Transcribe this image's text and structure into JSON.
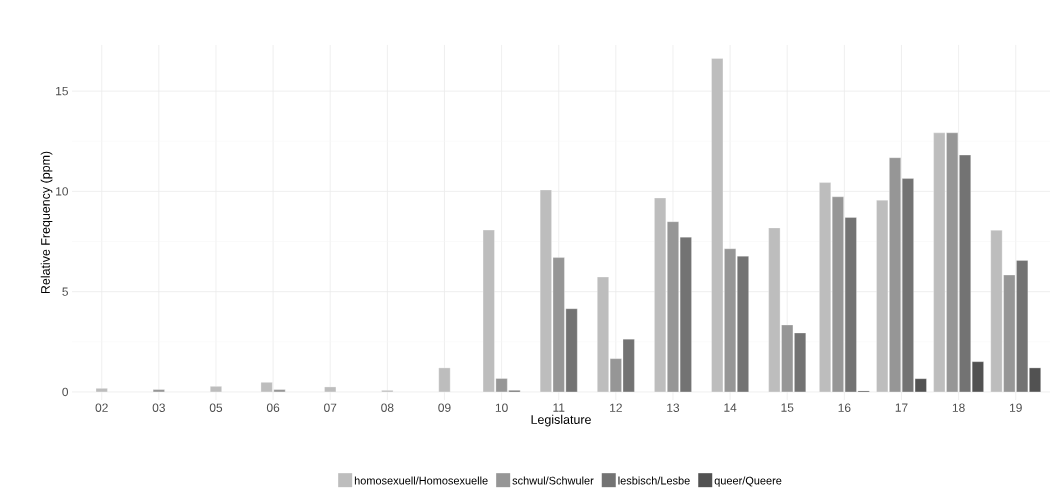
{
  "chart_data": {
    "type": "bar",
    "xlabel": "Legislature",
    "ylabel": "Relative Frequency (ppm)",
    "categories": [
      "02",
      "03",
      "05",
      "06",
      "07",
      "08",
      "09",
      "10",
      "11",
      "12",
      "13",
      "14",
      "15",
      "16",
      "17",
      "18",
      "19"
    ],
    "series": [
      {
        "name": "homosexuell/Homosexuelle",
        "color": "#bdbdbd",
        "values": [
          0.18,
          null,
          0.28,
          0.48,
          0.25,
          0.08,
          1.2,
          8.07,
          10.07,
          5.73,
          9.67,
          16.63,
          8.18,
          10.44,
          9.56,
          12.92,
          8.06
        ]
      },
      {
        "name": "schwul/Schwuler",
        "color": "#969696",
        "values": [
          null,
          0.12,
          null,
          0.12,
          null,
          null,
          null,
          0.67,
          6.7,
          1.66,
          8.49,
          7.14,
          3.34,
          9.73,
          11.68,
          12.92,
          5.83
        ]
      },
      {
        "name": "lesbisch/Lesbe",
        "color": "#737373",
        "values": [
          null,
          null,
          null,
          null,
          null,
          null,
          null,
          0.08,
          4.15,
          2.63,
          7.72,
          6.77,
          2.94,
          8.7,
          10.64,
          11.81,
          6.56
        ]
      },
      {
        "name": "queer/Queere",
        "color": "#525252",
        "values": [
          null,
          null,
          null,
          null,
          null,
          null,
          null,
          null,
          null,
          null,
          null,
          null,
          null,
          0.05,
          0.66,
          1.51,
          1.2
        ]
      }
    ],
    "ylim": [
      -0.4,
      17.3
    ],
    "yticks": [
      0,
      5,
      10,
      15
    ],
    "grid": true,
    "legend": "bottom"
  }
}
